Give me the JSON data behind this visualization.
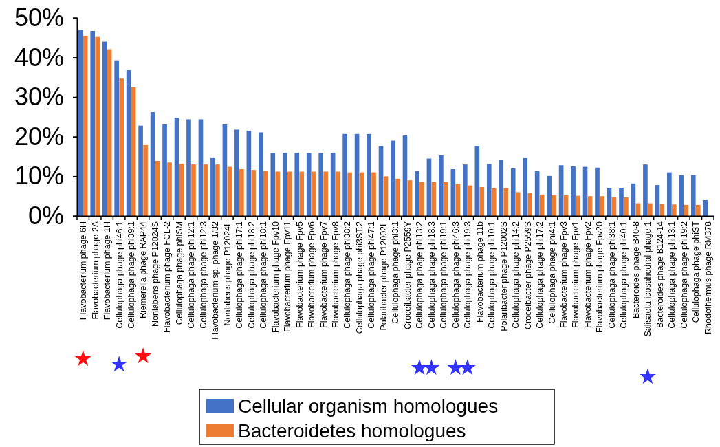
{
  "chart_data": {
    "type": "bar",
    "categories": [
      "Flavobacterium phage 6H",
      "Flavobacterium phage 2A",
      "Flavobacterium phage 1H",
      "Cellulophaga phage phi46:1",
      "Cellulophaga phage phi39:1",
      "Riemerella phage RAP44",
      "Nonlabens phage P12024S",
      "Flavobacterium phage FCL-2",
      "Cellulophaga phage phiSM",
      "Cellulophaga phage phi12:1",
      "Cellulophaga phage phi12:3",
      "Flavobacterium sp. phage 1/32",
      "Nonlabens phage P12024L",
      "Cellulophaga phage phi17:1",
      "Cellulophaga phage phi18:2",
      "Cellulophaga phage phi18:1",
      "Flavobacterium phage Fpv10",
      "Flavobacterium phage Fpv11",
      "Flavobacterium phage Fpv5",
      "Flavobacterium phage Fpv6",
      "Flavobacterium phage Fpv7",
      "Flavobacterium phage Fpv8",
      "Cellulophaga phage phi38:2",
      "Cellulophaga phage phi3ST:2",
      "Cellulophaga phage phi47:1",
      "Polaribacter phage P12002L",
      "Cellulophaga phage phi3:1",
      "Croceibacter phage P2559Y",
      "Cellulophaga phage phi13:2",
      "Cellulophaga phage phi18:3",
      "Cellulophaga phage phi19:1",
      "Cellulophaga phage phi46:3",
      "Cellulophaga phage phi19:3",
      "Flavobacterium phage 11b",
      "Cellulophaga phage phi10:1",
      "Polaribacter phage P12002S",
      "Cellulophaga phage phi14:2",
      "Croceibacter phage P2559S",
      "Cellulophaga phage phi17:2",
      "Cellulophaga phage phi4:1",
      "Flavobacterium phage Fpv3",
      "Flavobacterium phage Fpv1",
      "Flavobacterium phage Fpv2",
      "Flavobacterium phage Fpv20",
      "Cellulophaga phage phi38:1",
      "Cellulophaga phage phi40:1",
      "Bacteroides phage B40-8",
      "Salisaeta icosahedral phage 1",
      "Bacteroides phage B124-14",
      "Cellulophaga phage phi13:1",
      "Cellulophaga phage phi19:2",
      "Cellulophaga phage phiST",
      "Rhodothermus phage RM378"
    ],
    "series": [
      {
        "name": "Cellular organism homologues",
        "color": "#4472c4",
        "values": [
          47.0,
          46.7,
          44.0,
          39.3,
          36.8,
          22.8,
          26.2,
          23.1,
          24.8,
          24.4,
          24.4,
          14.6,
          23.1,
          21.8,
          21.5,
          21.1,
          15.9,
          15.9,
          15.9,
          15.9,
          15.9,
          15.9,
          20.7,
          20.7,
          20.7,
          17.6,
          19.0,
          20.3,
          11.3,
          14.5,
          15.3,
          11.8,
          13.0,
          17.7,
          13.1,
          14.2,
          12.0,
          14.6,
          11.3,
          10.1,
          12.8,
          12.5,
          12.4,
          12.2,
          7.1,
          7.1,
          8.2,
          13.0,
          7.8,
          11.0,
          10.3,
          10.3,
          4.0
        ]
      },
      {
        "name": "Bacteroidetes homologues",
        "color": "#ed7d31",
        "values": [
          45.5,
          45.2,
          42.1,
          34.7,
          32.5,
          17.9,
          13.9,
          13.5,
          13.2,
          13.0,
          13.0,
          13.0,
          12.4,
          11.8,
          11.6,
          11.4,
          11.2,
          11.2,
          11.2,
          11.2,
          11.2,
          11.2,
          11.0,
          11.0,
          11.0,
          10.0,
          9.4,
          9.0,
          8.6,
          8.6,
          8.5,
          8.1,
          7.7,
          7.3,
          7.0,
          7.0,
          6.0,
          5.8,
          5.4,
          5.2,
          5.2,
          5.1,
          5.0,
          5.0,
          4.7,
          4.7,
          3.2,
          3.2,
          3.1,
          2.9,
          2.8,
          2.8,
          0
        ]
      }
    ],
    "ylim": [
      0,
      50
    ],
    "yticks": [
      {
        "value": 0,
        "label": "0%"
      },
      {
        "value": 10,
        "label": "10%"
      },
      {
        "value": 20,
        "label": "20%"
      },
      {
        "value": 30,
        "label": "30%"
      },
      {
        "value": 40,
        "label": "40%"
      },
      {
        "value": 50,
        "label": "50%"
      }
    ],
    "legend": "bottom"
  }
}
